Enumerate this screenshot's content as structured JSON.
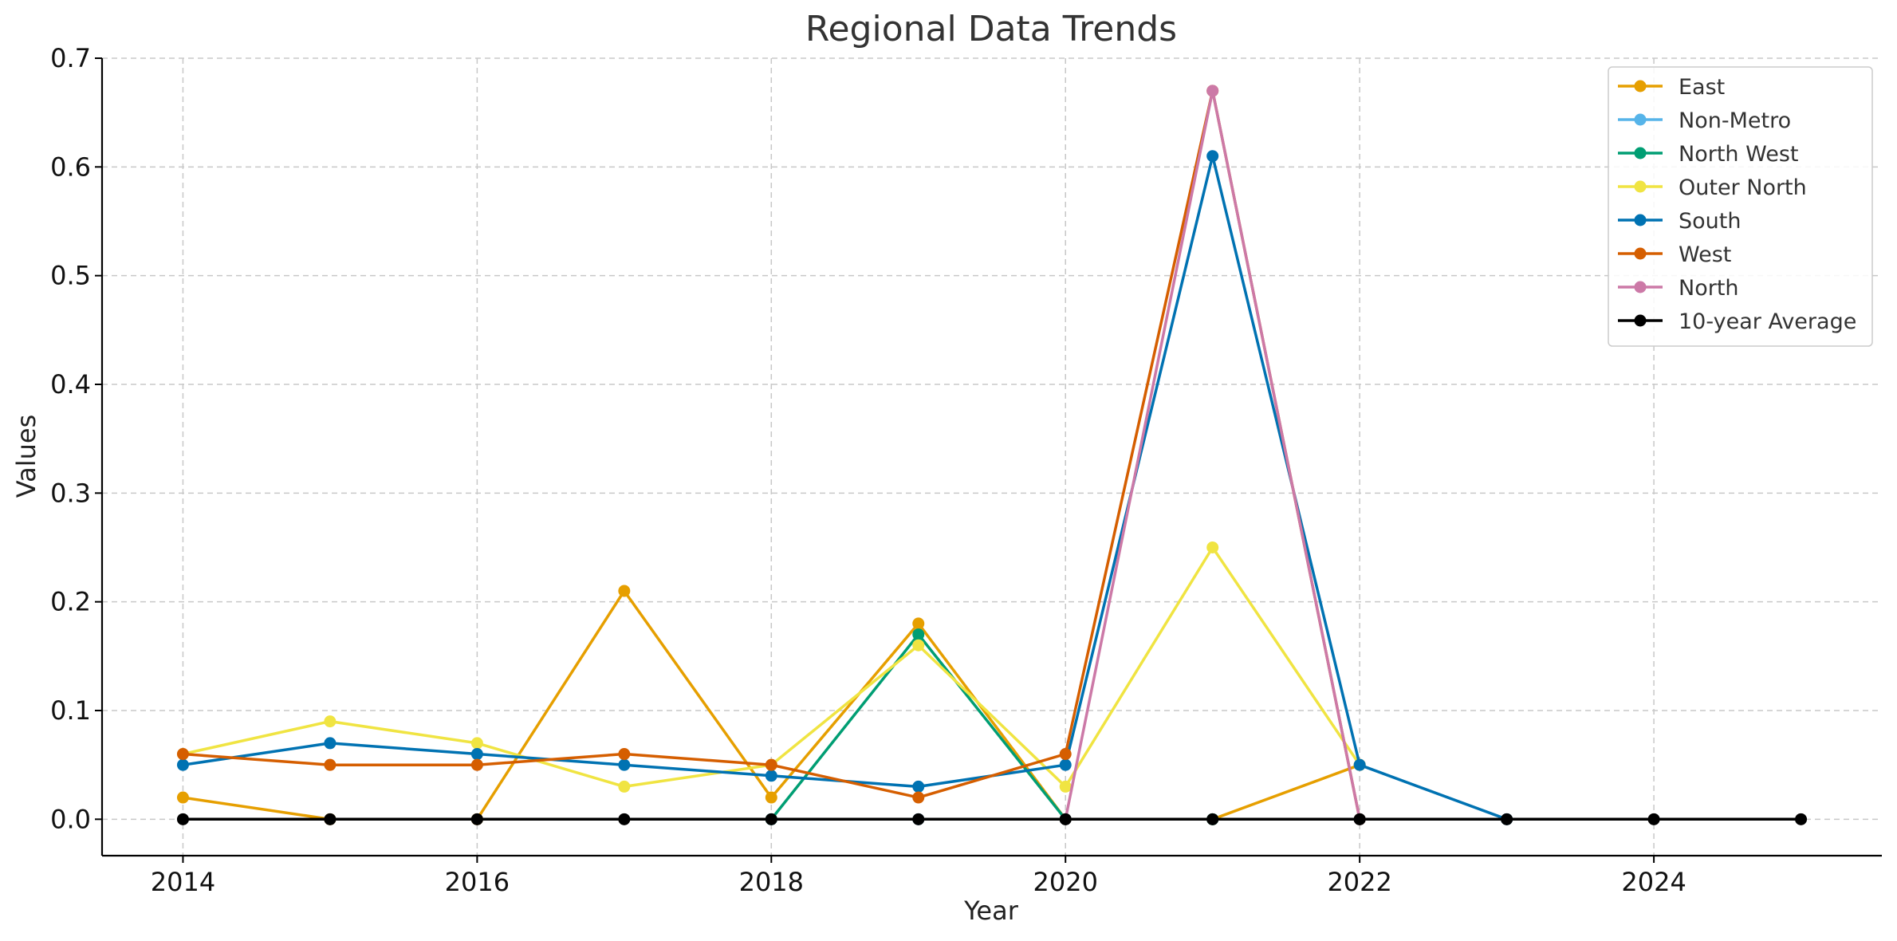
{
  "chart_data": {
    "type": "line",
    "title": "Regional Data Trends",
    "xlabel": "Year",
    "ylabel": "Values",
    "xlim": [
      2013.45,
      2025.55
    ],
    "ylim": [
      -0.0335,
      0.7
    ],
    "x_ticks": [
      2014,
      2016,
      2018,
      2020,
      2022,
      2024
    ],
    "y_ticks": [
      0.0,
      0.1,
      0.2,
      0.3,
      0.4,
      0.5,
      0.6,
      0.7
    ],
    "grid": true,
    "legend_position": "top-right",
    "x": [
      2014,
      2015,
      2016,
      2017,
      2018,
      2019,
      2020,
      2021,
      2022,
      2023,
      2024,
      2025
    ],
    "series": [
      {
        "name": "East",
        "color": "#E69F00",
        "values": [
          0.02,
          0.0,
          0.0,
          0.21,
          0.02,
          0.18,
          0.0,
          0.0,
          0.05,
          null,
          null,
          null
        ]
      },
      {
        "name": "Non-Metro",
        "color": "#56B4E9",
        "values": [
          null,
          null,
          null,
          null,
          0.0,
          0.0,
          0.0,
          0.0,
          0.0,
          null,
          null,
          null
        ]
      },
      {
        "name": "North West",
        "color": "#009E73",
        "values": [
          null,
          null,
          null,
          null,
          0.0,
          0.17,
          0.0,
          0.0,
          0.0,
          null,
          null,
          null
        ]
      },
      {
        "name": "Outer North",
        "color": "#F0E442",
        "values": [
          0.06,
          0.09,
          0.07,
          0.03,
          0.05,
          0.16,
          0.03,
          0.25,
          0.05,
          null,
          null,
          null
        ]
      },
      {
        "name": "South",
        "color": "#0072B2",
        "values": [
          0.05,
          0.07,
          0.06,
          0.05,
          0.04,
          0.03,
          0.05,
          0.61,
          0.05,
          0.0,
          null,
          null
        ]
      },
      {
        "name": "West",
        "color": "#D55E00",
        "values": [
          0.06,
          0.05,
          0.05,
          0.06,
          0.05,
          0.02,
          0.06,
          0.67,
          0.0,
          null,
          null,
          null
        ]
      },
      {
        "name": "North",
        "color": "#CC79A7",
        "values": [
          null,
          null,
          null,
          null,
          null,
          null,
          0.0,
          0.67,
          0.0,
          null,
          null,
          null
        ]
      },
      {
        "name": "10-year Average",
        "color": "#000000",
        "values": [
          0.0,
          0.0,
          0.0,
          0.0,
          0.0,
          0.0,
          0.0,
          0.0,
          0.0,
          0.0,
          0.0,
          0.0
        ]
      }
    ]
  }
}
